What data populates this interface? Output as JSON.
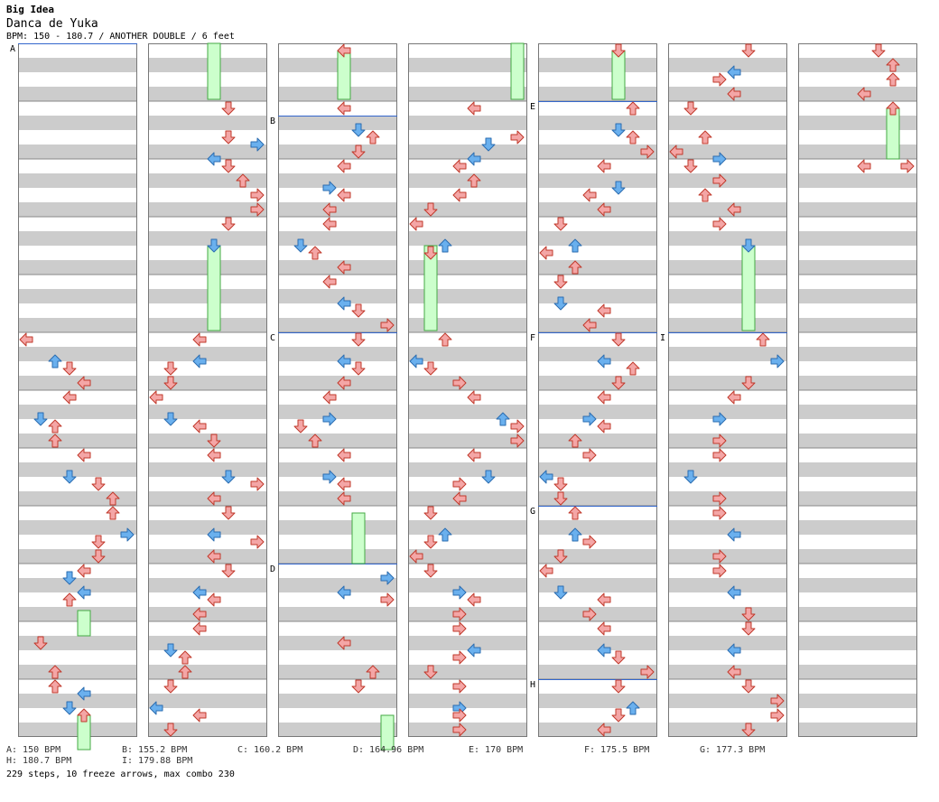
{
  "header": {
    "title": "Big Idea",
    "song": "Danca de Yuka",
    "info": "BPM: 150 - 180.7 / ANOTHER DOUBLE / 6 feet"
  },
  "chart": {
    "columns": 7,
    "measures_per_column": 12,
    "stripe_color": "#cccccc",
    "divider_color": "#888888",
    "bpm_line_color": "#3366cc",
    "arrow_colors": {
      "red": "#f4a6a6",
      "blue": "#6ab0ee",
      "freeze": "#ccffcc"
    },
    "bpm_markers": [
      {
        "label": "A"
      },
      {
        "label": "B"
      },
      {
        "label": "C"
      },
      {
        "label": "D"
      },
      {
        "label": "E"
      },
      {
        "label": "F"
      },
      {
        "label": "G"
      },
      {
        "label": "H"
      },
      {
        "label": "I"
      }
    ]
  },
  "legend": {
    "row1": [
      "A: 150 BPM",
      "B: 155.2 BPM",
      "C: 160.2 BPM",
      "D: 164.96 BPM",
      "E: 170 BPM",
      "F: 175.5 BPM",
      "G: 177.3 BPM"
    ],
    "row2": [
      "H: 180.7 BPM",
      "I: 179.88 BPM"
    ]
  },
  "summary": "229 steps, 10 freeze arrows, max combo 230"
}
